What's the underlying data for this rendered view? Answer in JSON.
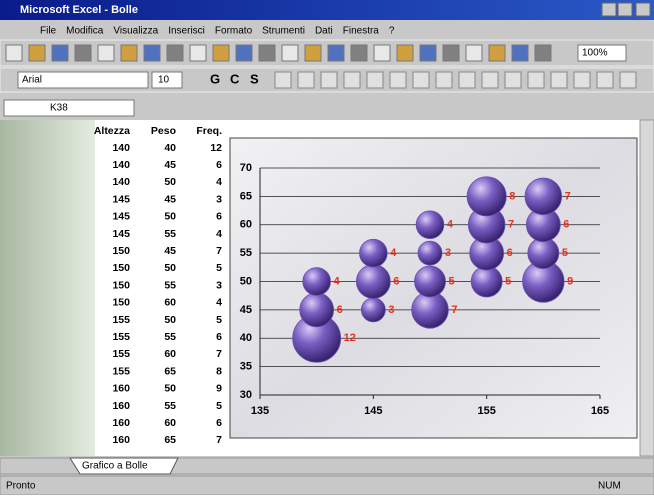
{
  "window": {
    "title": "Microsoft Excel - Bolle"
  },
  "menu": [
    "File",
    "Modifica",
    "Visualizza",
    "Inserisci",
    "Formato",
    "Strumenti",
    "Dati",
    "Finestra",
    "?"
  ],
  "toolbar": {
    "font": "Arial",
    "size": "10",
    "zoom": "100%",
    "format_buttons": [
      "G",
      "C",
      "S"
    ]
  },
  "formula_bar": {
    "name_box": "K38"
  },
  "table": {
    "header": [
      "Altezza",
      "Peso",
      "Freq."
    ],
    "rows": [
      [
        140,
        40,
        12
      ],
      [
        140,
        45,
        6
      ],
      [
        140,
        50,
        4
      ],
      [
        145,
        45,
        3
      ],
      [
        145,
        50,
        6
      ],
      [
        145,
        55,
        4
      ],
      [
        150,
        45,
        7
      ],
      [
        150,
        50,
        5
      ],
      [
        150,
        55,
        3
      ],
      [
        150,
        60,
        4
      ],
      [
        155,
        50,
        5
      ],
      [
        155,
        55,
        6
      ],
      [
        155,
        60,
        7
      ],
      [
        155,
        65,
        8
      ],
      [
        160,
        50,
        9
      ],
      [
        160,
        55,
        5
      ],
      [
        160,
        60,
        6
      ],
      [
        160,
        65,
        7
      ]
    ]
  },
  "chart_data": {
    "type": "bubble",
    "x": [
      140,
      140,
      140,
      145,
      145,
      145,
      150,
      150,
      150,
      150,
      155,
      155,
      155,
      155,
      160,
      160,
      160,
      160
    ],
    "series": [
      {
        "color": "#6a4fb0",
        "values": [
          40,
          45,
          50,
          45,
          50,
          55,
          45,
          50,
          55,
          60,
          50,
          55,
          60,
          65,
          50,
          55,
          60,
          65
        ],
        "sizes": [
          12,
          6,
          4,
          3,
          6,
          4,
          7,
          5,
          3,
          4,
          5,
          6,
          7,
          8,
          9,
          5,
          6,
          7
        ]
      }
    ],
    "label_color": "#e8301c",
    "xlim": [
      135,
      165
    ],
    "xticks": [
      135,
      145,
      155,
      165
    ],
    "ylim": [
      30,
      70
    ],
    "yticks": [
      30,
      35,
      40,
      45,
      50,
      55,
      60,
      65,
      70
    ],
    "grid": true
  },
  "sheet_tab": "Grafico a Bolle",
  "status": {
    "left": "Pronto",
    "right": "NUM"
  }
}
